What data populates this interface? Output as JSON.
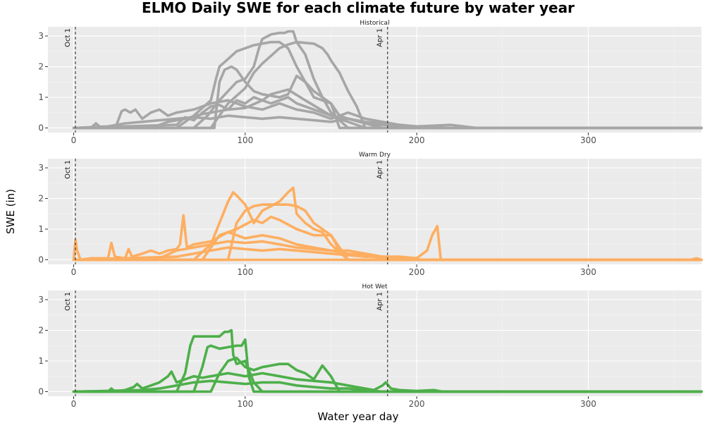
{
  "chart_data": {
    "type": "line",
    "title": "ELMO Daily SWE for each climate future by water year",
    "xlabel": "Water year day",
    "ylabel": "SWE (in)",
    "xlim": [
      -15,
      366
    ],
    "ylim": [
      -0.15,
      3.3
    ],
    "x_ticks": [
      0,
      100,
      200,
      300
    ],
    "y_ticks": [
      0,
      1,
      2,
      3
    ],
    "grid": true,
    "reference_lines": [
      {
        "x": 1,
        "label": "Oct 1"
      },
      {
        "x": 183,
        "label": "Apr 1"
      }
    ],
    "panels": [
      {
        "name": "Historical",
        "color": "#A6A6A6",
        "series": [
          {
            "x": [
              0,
              60,
              70,
              80,
              83,
              85,
              90,
              95,
              100,
              105,
              110,
              115,
              120,
              125,
              130,
              135,
              140,
              145,
              150,
              155,
              160,
              180,
              366
            ],
            "y": [
              0,
              0,
              0.4,
              0.9,
              1.6,
              2.0,
              2.25,
              2.5,
              2.6,
              2.7,
              2.75,
              2.8,
              2.8,
              2.6,
              2.0,
              1.5,
              1.0,
              0.9,
              0.8,
              0.4,
              0.3,
              0,
              0
            ]
          },
          {
            "x": [
              0,
              70,
              78,
              85,
              95,
              100,
              105,
              108,
              110,
              115,
              120,
              123,
              125,
              128,
              130,
              135,
              140,
              145,
              150,
              160,
              366
            ],
            "y": [
              0,
              0,
              0.4,
              0.9,
              1.5,
              1.6,
              2.0,
              2.6,
              2.9,
              3.05,
              3.1,
              3.1,
              3.15,
              3.15,
              2.8,
              2.4,
              1.6,
              1.0,
              0.5,
              0,
              0
            ]
          },
          {
            "x": [
              0,
              80,
              90,
              100,
              105,
              110,
              120,
              125,
              130,
              140,
              145,
              148,
              150,
              155,
              160,
              165,
              170,
              366
            ],
            "y": [
              0,
              0,
              0.8,
              1.3,
              1.8,
              2.1,
              2.6,
              2.72,
              2.8,
              2.75,
              2.6,
              2.4,
              2.2,
              1.8,
              1.2,
              0.7,
              0,
              0
            ]
          },
          {
            "x": [
              0,
              82,
              85,
              88,
              92,
              95,
              100,
              105,
              110,
              115,
              120,
              125,
              130,
              135,
              140,
              150,
              155,
              366
            ],
            "y": [
              0,
              0,
              1.5,
              1.9,
              2.0,
              1.9,
              1.5,
              1.2,
              1.1,
              1.05,
              1.0,
              1.1,
              1.7,
              1.5,
              1.2,
              0.8,
              0,
              0
            ]
          },
          {
            "x": [
              0,
              60,
              65,
              70,
              75,
              80,
              85,
              90,
              95,
              100,
              105,
              110,
              115,
              120,
              125,
              130,
              135,
              140,
              145,
              150,
              160,
              170,
              180,
              190,
              200,
              366
            ],
            "y": [
              0,
              0.1,
              0.35,
              0.25,
              0.5,
              0.7,
              0.75,
              0.6,
              0.9,
              0.8,
              1.0,
              0.9,
              0.8,
              0.9,
              1.0,
              0.8,
              0.7,
              0.6,
              0.5,
              0.4,
              0.3,
              0.2,
              0.15,
              0.1,
              0,
              0
            ]
          },
          {
            "x": [
              0,
              45,
              55,
              65,
              75,
              90,
              100,
              110,
              115,
              125,
              135,
              150,
              160,
              170,
              366
            ],
            "y": [
              0,
              0,
              0.2,
              0.3,
              0.45,
              0.6,
              0.65,
              0.9,
              1.1,
              1.25,
              0.9,
              0.4,
              0.2,
              0,
              0
            ]
          },
          {
            "x": [
              0,
              10,
              13,
              16,
              25,
              28,
              30,
              33,
              36,
              40,
              45,
              50,
              55,
              60,
              70,
              80,
              90,
              100,
              110,
              120,
              130,
              140,
              150,
              160,
              170,
              180,
              190,
              200,
              210,
              366
            ],
            "y": [
              0,
              0,
              0.15,
              0,
              0.1,
              0.55,
              0.6,
              0.5,
              0.6,
              0.3,
              0.5,
              0.6,
              0.4,
              0.5,
              0.6,
              0.8,
              0.9,
              0.7,
              0.6,
              0.8,
              0.6,
              0.5,
              0.3,
              0.5,
              0.3,
              0.2,
              0.1,
              0.05,
              0,
              0
            ]
          },
          {
            "x": [
              0,
              20,
              30,
              40,
              50,
              60,
              70,
              80,
              90,
              100,
              110,
              120,
              130,
              140,
              150,
              160,
              170,
              180,
              200,
              220,
              235,
              366
            ],
            "y": [
              0,
              0.05,
              0.15,
              0.2,
              0.25,
              0.3,
              0.35,
              0.3,
              0.4,
              0.35,
              0.3,
              0.35,
              0.3,
              0.25,
              0.2,
              0.3,
              0.15,
              0.1,
              0.05,
              0.1,
              0,
              0
            ]
          }
        ]
      },
      {
        "name": "Warm Dry",
        "color": "#FDAE61",
        "series": [
          {
            "x": [
              0,
              70,
              80,
              85,
              90,
              93,
              95,
              100,
              105,
              110,
              120,
              125,
              128,
              130,
              135,
              140,
              145,
              150,
              160,
              366
            ],
            "y": [
              0,
              0,
              0.5,
              1.2,
              1.9,
              2.2,
              2.1,
              1.8,
              1.2,
              1.6,
              1.9,
              2.2,
              2.35,
              1.5,
              1.2,
              1.0,
              0.9,
              0.5,
              0,
              0
            ]
          },
          {
            "x": [
              0,
              90,
              95,
              100,
              105,
              110,
              115,
              120,
              125,
              130,
              135,
              140,
              145,
              150,
              160,
              366
            ],
            "y": [
              0,
              0,
              1.2,
              1.6,
              1.75,
              1.8,
              1.8,
              1.8,
              1.8,
              1.75,
              1.6,
              1.2,
              1.0,
              0.8,
              0,
              0
            ]
          },
          {
            "x": [
              0,
              75,
              85,
              95,
              105,
              110,
              115,
              120,
              130,
              140,
              150,
              155,
              160,
              366
            ],
            "y": [
              0,
              0,
              0.8,
              1.0,
              1.3,
              1.2,
              1.4,
              1.3,
              1.0,
              0.8,
              0.8,
              0.3,
              0,
              0
            ]
          },
          {
            "x": [
              0,
              1,
              2,
              4,
              10,
              20,
              22,
              24,
              30,
              32,
              34,
              40,
              45,
              50,
              55,
              60,
              62,
              64,
              66,
              70,
              80,
              90,
              100,
              110,
              120,
              130,
              140,
              150,
              160,
              170,
              180,
              190,
              200,
              206,
              209,
              212,
              214,
              220,
              366
            ],
            "y": [
              0,
              0.65,
              0.3,
              0,
              0.05,
              0.05,
              0.55,
              0.1,
              0.05,
              0.35,
              0.1,
              0.2,
              0.3,
              0.2,
              0.3,
              0.35,
              0.5,
              1.45,
              0.4,
              0.5,
              0.6,
              0.9,
              0.7,
              0.8,
              0.7,
              0.5,
              0.4,
              0.3,
              0.3,
              0.2,
              0.1,
              0.1,
              0.05,
              0.3,
              0.8,
              1.1,
              0,
              0,
              0
            ]
          },
          {
            "x": [
              0,
              50,
              60,
              70,
              80,
              90,
              100,
              110,
              120,
              130,
              140,
              150,
              160,
              170,
              180,
              195,
              366
            ],
            "y": [
              0,
              0.05,
              0.3,
              0.4,
              0.5,
              0.6,
              0.55,
              0.6,
              0.5,
              0.4,
              0.35,
              0.3,
              0.2,
              0.15,
              0.05,
              0,
              0
            ]
          },
          {
            "x": [
              0,
              60,
              70,
              80,
              90,
              100,
              110,
              120,
              130,
              140,
              150,
              160,
              170,
              180,
              190,
              200,
              366
            ],
            "y": [
              0,
              0.1,
              0.2,
              0.3,
              0.4,
              0.35,
              0.3,
              0.35,
              0.3,
              0.25,
              0.2,
              0.15,
              0.1,
              0.1,
              0.05,
              0,
              0
            ]
          },
          {
            "x": [
              0,
              360,
              363,
              366
            ],
            "y": [
              0,
              0,
              0.05,
              0
            ]
          }
        ]
      },
      {
        "name": "Hot Wet",
        "color": "#4DAF4A",
        "series": [
          {
            "x": [
              0,
              60,
              65,
              68,
              70,
              85,
              88,
              90,
              92,
              93,
              95,
              100,
              105,
              110,
              366
            ],
            "y": [
              0,
              0,
              0.6,
              1.5,
              1.8,
              1.8,
              1.95,
              1.95,
              2.0,
              1.2,
              0.9,
              1.0,
              0.3,
              0,
              0
            ]
          },
          {
            "x": [
              0,
              70,
              75,
              78,
              80,
              85,
              90,
              95,
              98,
              100,
              102,
              105,
              366
            ],
            "y": [
              0,
              0,
              0.8,
              1.45,
              1.5,
              1.4,
              1.45,
              1.5,
              1.5,
              1.7,
              0.5,
              0,
              0
            ]
          },
          {
            "x": [
              0,
              80,
              85,
              90,
              95,
              100,
              105,
              110,
              115,
              120,
              125,
              130,
              135,
              140,
              145,
              150,
              155,
              366
            ],
            "y": [
              0,
              0,
              0.6,
              1.0,
              1.1,
              0.8,
              0.7,
              0.8,
              0.85,
              0.9,
              0.9,
              0.7,
              0.6,
              0.4,
              0.85,
              0.5,
              0,
              0
            ]
          },
          {
            "x": [
              0,
              20,
              22,
              24,
              30,
              35,
              37,
              40,
              45,
              50,
              55,
              57,
              60,
              65,
              70,
              75,
              80,
              90,
              100,
              110,
              120,
              130,
              140,
              150,
              160,
              165,
              170,
              175,
              180,
              182,
              185,
              190,
              200,
              210,
              215,
              366
            ],
            "y": [
              0,
              0,
              0.1,
              0,
              0.05,
              0.15,
              0.25,
              0.1,
              0.2,
              0.3,
              0.5,
              0.65,
              0.3,
              0.4,
              0.5,
              0.45,
              0.5,
              0.6,
              0.5,
              0.6,
              0.5,
              0.4,
              0.35,
              0.3,
              0.2,
              0.15,
              0.1,
              0.05,
              0.2,
              0.3,
              0.1,
              0.05,
              0.02,
              0.05,
              0,
              0
            ]
          },
          {
            "x": [
              0,
              40,
              50,
              60,
              70,
              80,
              90,
              100,
              110,
              120,
              130,
              140,
              150,
              160,
              170,
              180,
              366
            ],
            "y": [
              0,
              0.05,
              0.1,
              0.2,
              0.3,
              0.35,
              0.3,
              0.25,
              0.3,
              0.3,
              0.2,
              0.15,
              0.1,
              0.1,
              0.05,
              0,
              0
            ]
          }
        ]
      }
    ]
  }
}
